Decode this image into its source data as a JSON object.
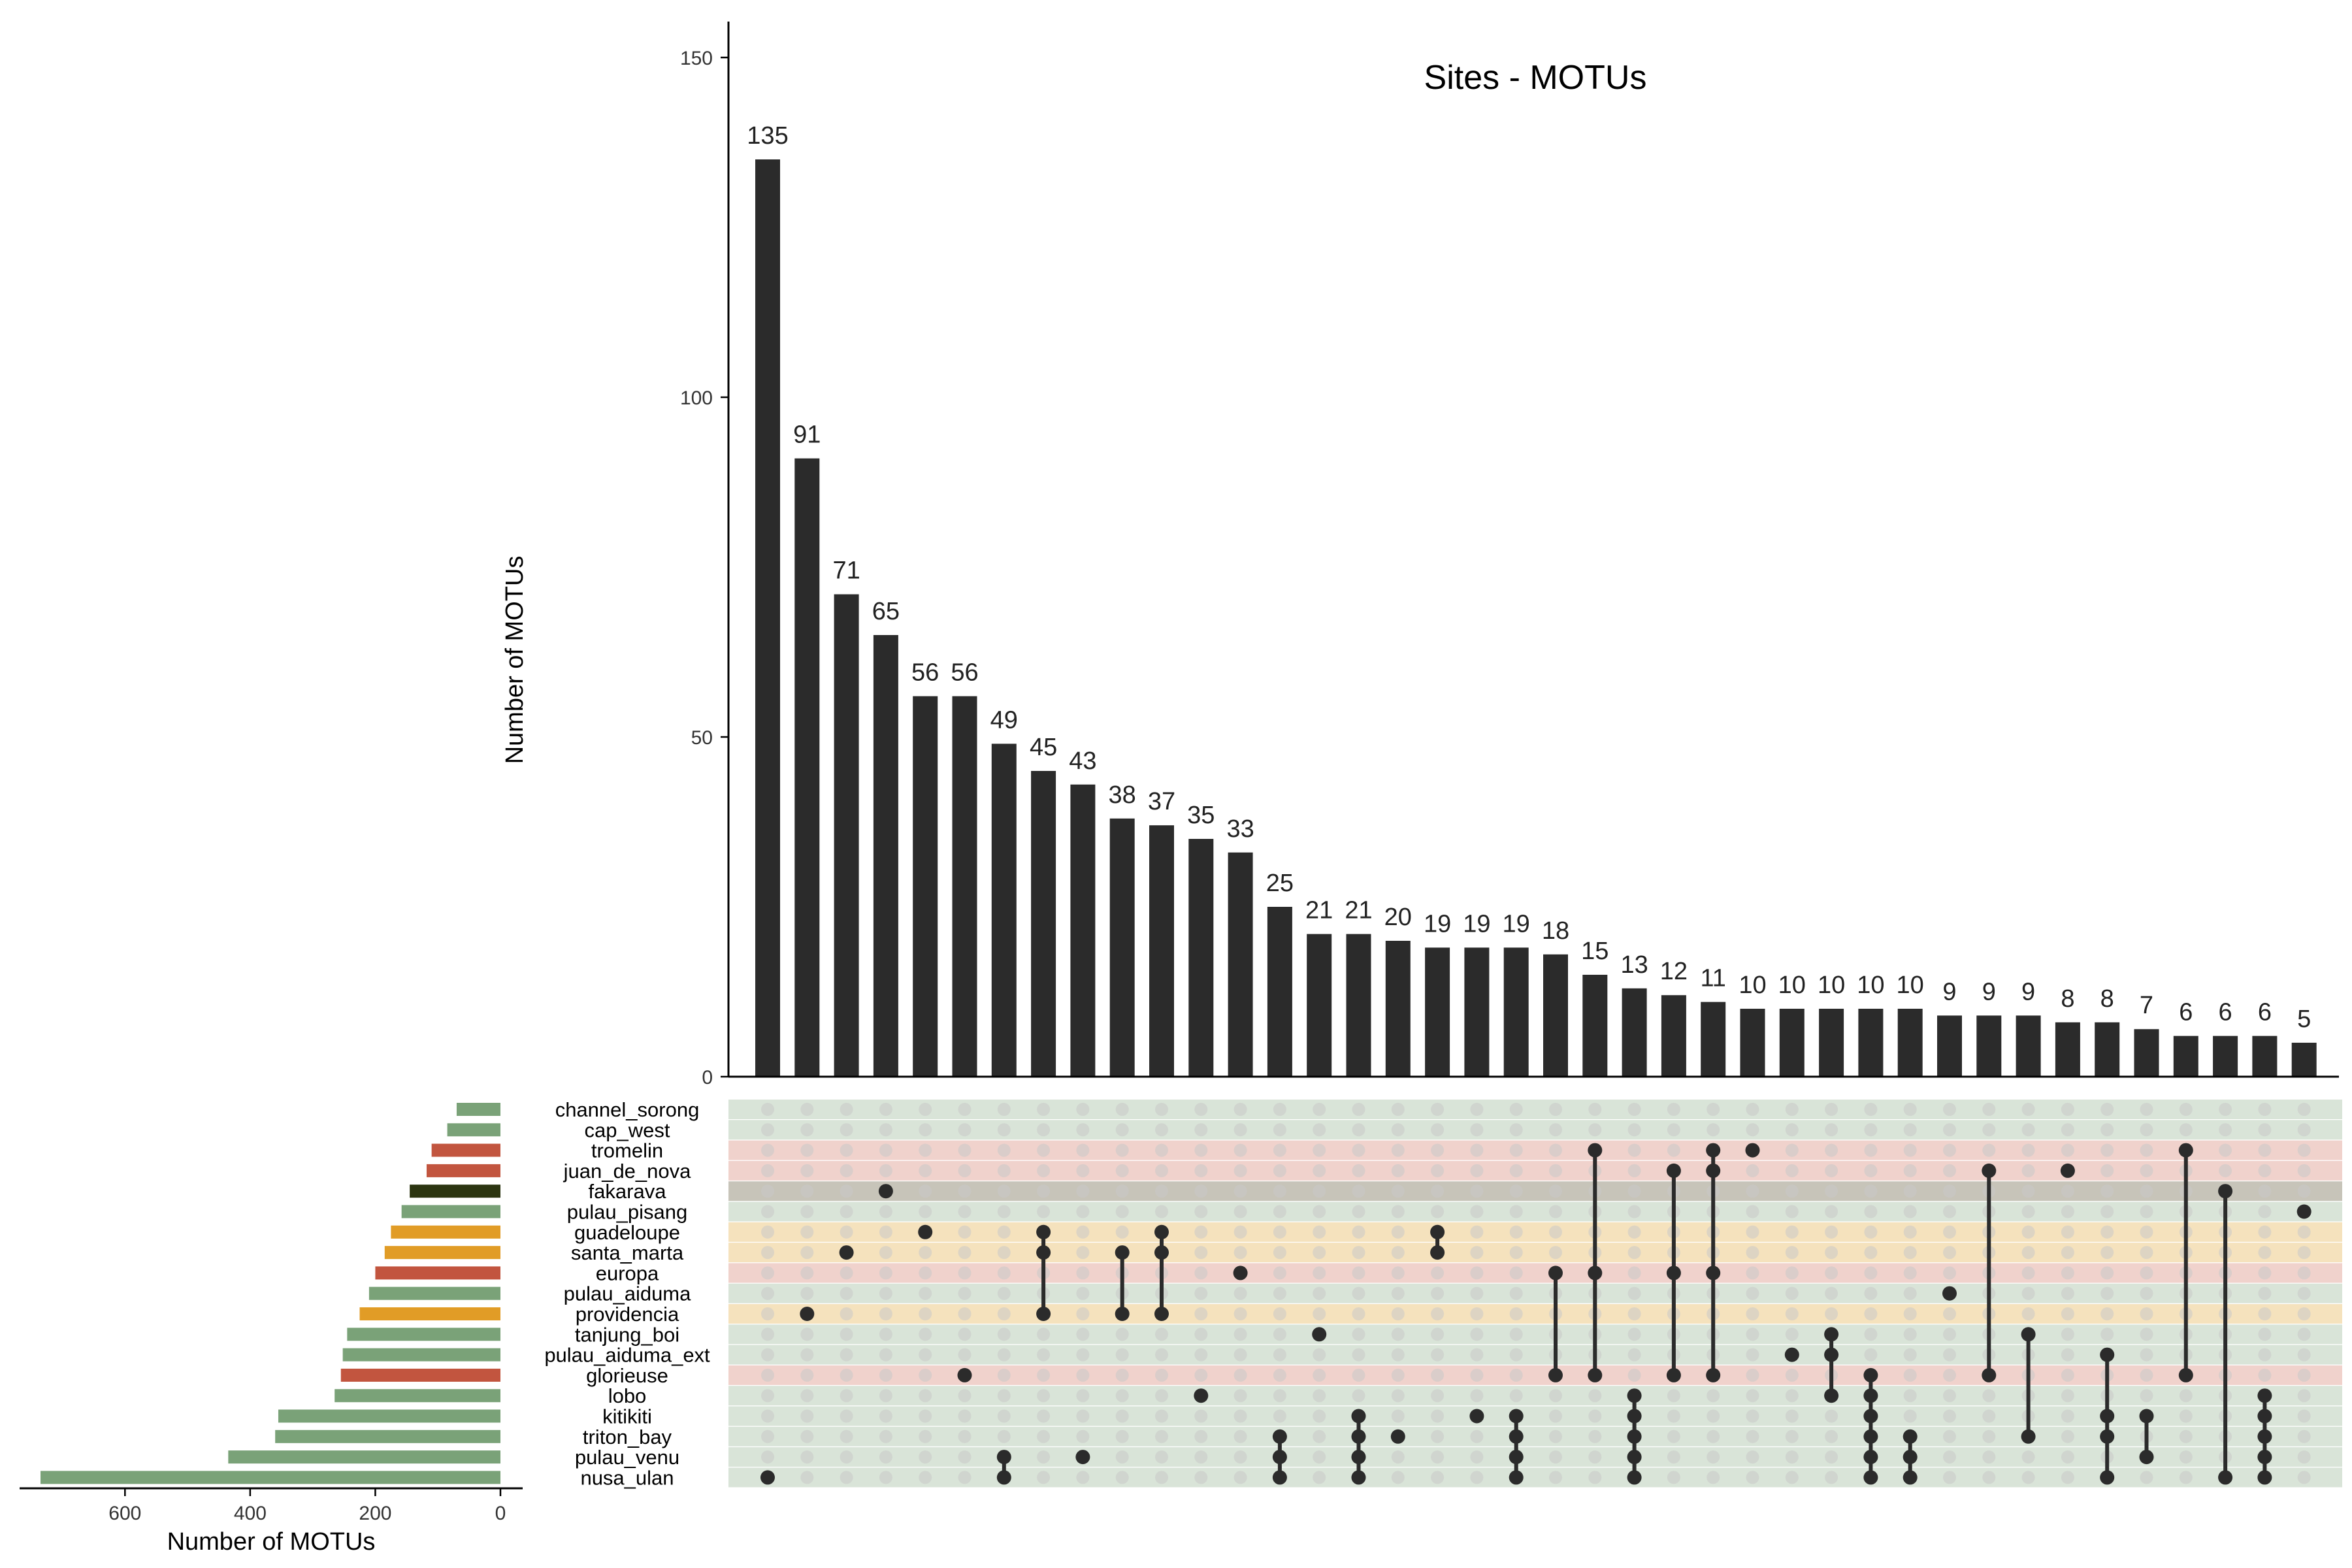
{
  "chart_data": {
    "type": "bar",
    "title": "Sites - MOTUs",
    "ylabel": "Number of MOTUs",
    "ylim": [
      0,
      155
    ],
    "yticks": [
      0,
      50,
      100,
      150
    ],
    "set_size_label": "Number of MOTUs",
    "set_size_xlim": [
      0,
      740
    ],
    "set_size_ticks": [
      600,
      400,
      200,
      0
    ],
    "sets": [
      {
        "name": "channel_sorong",
        "size": 70,
        "color": "#7aa278"
      },
      {
        "name": "cap_west",
        "size": 85,
        "color": "#7aa278"
      },
      {
        "name": "tromelin",
        "size": 110,
        "color": "#c2553f"
      },
      {
        "name": "juan_de_nova",
        "size": 118,
        "color": "#c2553f"
      },
      {
        "name": "fakarava",
        "size": 145,
        "color": "#2c3511"
      },
      {
        "name": "pulau_pisang",
        "size": 158,
        "color": "#7aa278"
      },
      {
        "name": "guadeloupe",
        "size": 175,
        "color": "#e19c26"
      },
      {
        "name": "santa_marta",
        "size": 185,
        "color": "#e19c26"
      },
      {
        "name": "europa",
        "size": 200,
        "color": "#c2553f"
      },
      {
        "name": "pulau_aiduma",
        "size": 210,
        "color": "#7aa278"
      },
      {
        "name": "providencia",
        "size": 225,
        "color": "#e19c26"
      },
      {
        "name": "tanjung_boi",
        "size": 245,
        "color": "#7aa278"
      },
      {
        "name": "pulau_aiduma_ext",
        "size": 252,
        "color": "#7aa278"
      },
      {
        "name": "glorieuse",
        "size": 255,
        "color": "#c2553f"
      },
      {
        "name": "lobo",
        "size": 265,
        "color": "#7aa278"
      },
      {
        "name": "kitikiti",
        "size": 355,
        "color": "#7aa278"
      },
      {
        "name": "triton_bay",
        "size": 360,
        "color": "#7aa278"
      },
      {
        "name": "pulau_venu",
        "size": 435,
        "color": "#7aa278"
      },
      {
        "name": "nusa_ulan",
        "size": 735,
        "color": "#7aa278"
      }
    ],
    "row_band_colors": [
      "#d9e4d8",
      "#d9e4d8",
      "#f0d2cc",
      "#f0d2cc",
      "#c7c4b9",
      "#d9e4d8",
      "#f5e2bd",
      "#f5e2bd",
      "#f0d2cc",
      "#d9e4d8",
      "#f5e2bd",
      "#d9e4d8",
      "#d9e4d8",
      "#f0d2cc",
      "#d9e4d8",
      "#d9e4d8",
      "#d9e4d8",
      "#d9e4d8",
      "#d9e4d8"
    ],
    "bar_color": "#2b2b2b",
    "intersections": [
      {
        "value": 135,
        "sets": [
          18
        ]
      },
      {
        "value": 91,
        "sets": [
          10
        ]
      },
      {
        "value": 71,
        "sets": [
          7
        ]
      },
      {
        "value": 65,
        "sets": [
          4
        ]
      },
      {
        "value": 56,
        "sets": [
          6
        ]
      },
      {
        "value": 56,
        "sets": [
          13
        ]
      },
      {
        "value": 49,
        "sets": [
          17,
          18
        ]
      },
      {
        "value": 45,
        "sets": [
          6,
          7,
          10
        ]
      },
      {
        "value": 43,
        "sets": [
          17
        ]
      },
      {
        "value": 38,
        "sets": [
          7,
          10
        ]
      },
      {
        "value": 37,
        "sets": [
          6,
          7,
          10
        ]
      },
      {
        "value": 35,
        "sets": [
          14
        ]
      },
      {
        "value": 33,
        "sets": [
          8
        ]
      },
      {
        "value": 25,
        "sets": [
          16,
          17,
          18
        ]
      },
      {
        "value": 21,
        "sets": [
          11
        ]
      },
      {
        "value": 21,
        "sets": [
          15,
          16,
          17,
          18
        ]
      },
      {
        "value": 20,
        "sets": [
          16
        ]
      },
      {
        "value": 19,
        "sets": [
          6,
          7
        ]
      },
      {
        "value": 19,
        "sets": [
          15
        ]
      },
      {
        "value": 19,
        "sets": [
          15,
          16,
          17,
          18
        ]
      },
      {
        "value": 18,
        "sets": [
          8,
          13
        ]
      },
      {
        "value": 15,
        "sets": [
          2,
          8,
          13
        ]
      },
      {
        "value": 13,
        "sets": [
          14,
          15,
          16,
          17,
          18
        ]
      },
      {
        "value": 12,
        "sets": [
          3,
          8,
          13
        ]
      },
      {
        "value": 11,
        "sets": [
          2,
          3,
          8,
          13
        ]
      },
      {
        "value": 10,
        "sets": [
          2
        ]
      },
      {
        "value": 10,
        "sets": [
          12
        ]
      },
      {
        "value": 10,
        "sets": [
          11,
          12,
          14
        ]
      },
      {
        "value": 10,
        "sets": [
          13,
          14,
          15,
          16,
          17,
          18
        ]
      },
      {
        "value": 10,
        "sets": [
          16,
          17,
          18
        ]
      },
      {
        "value": 9,
        "sets": [
          9
        ]
      },
      {
        "value": 9,
        "sets": [
          3,
          13
        ]
      },
      {
        "value": 9,
        "sets": [
          11,
          16
        ]
      },
      {
        "value": 8,
        "sets": [
          3
        ]
      },
      {
        "value": 8,
        "sets": [
          12,
          15,
          16,
          18
        ]
      },
      {
        "value": 7,
        "sets": [
          15,
          17
        ]
      },
      {
        "value": 6,
        "sets": [
          2,
          13
        ]
      },
      {
        "value": 6,
        "sets": [
          4,
          18
        ]
      },
      {
        "value": 6,
        "sets": [
          14,
          15,
          16,
          17,
          18
        ]
      },
      {
        "value": 5,
        "sets": [
          5
        ]
      }
    ]
  }
}
